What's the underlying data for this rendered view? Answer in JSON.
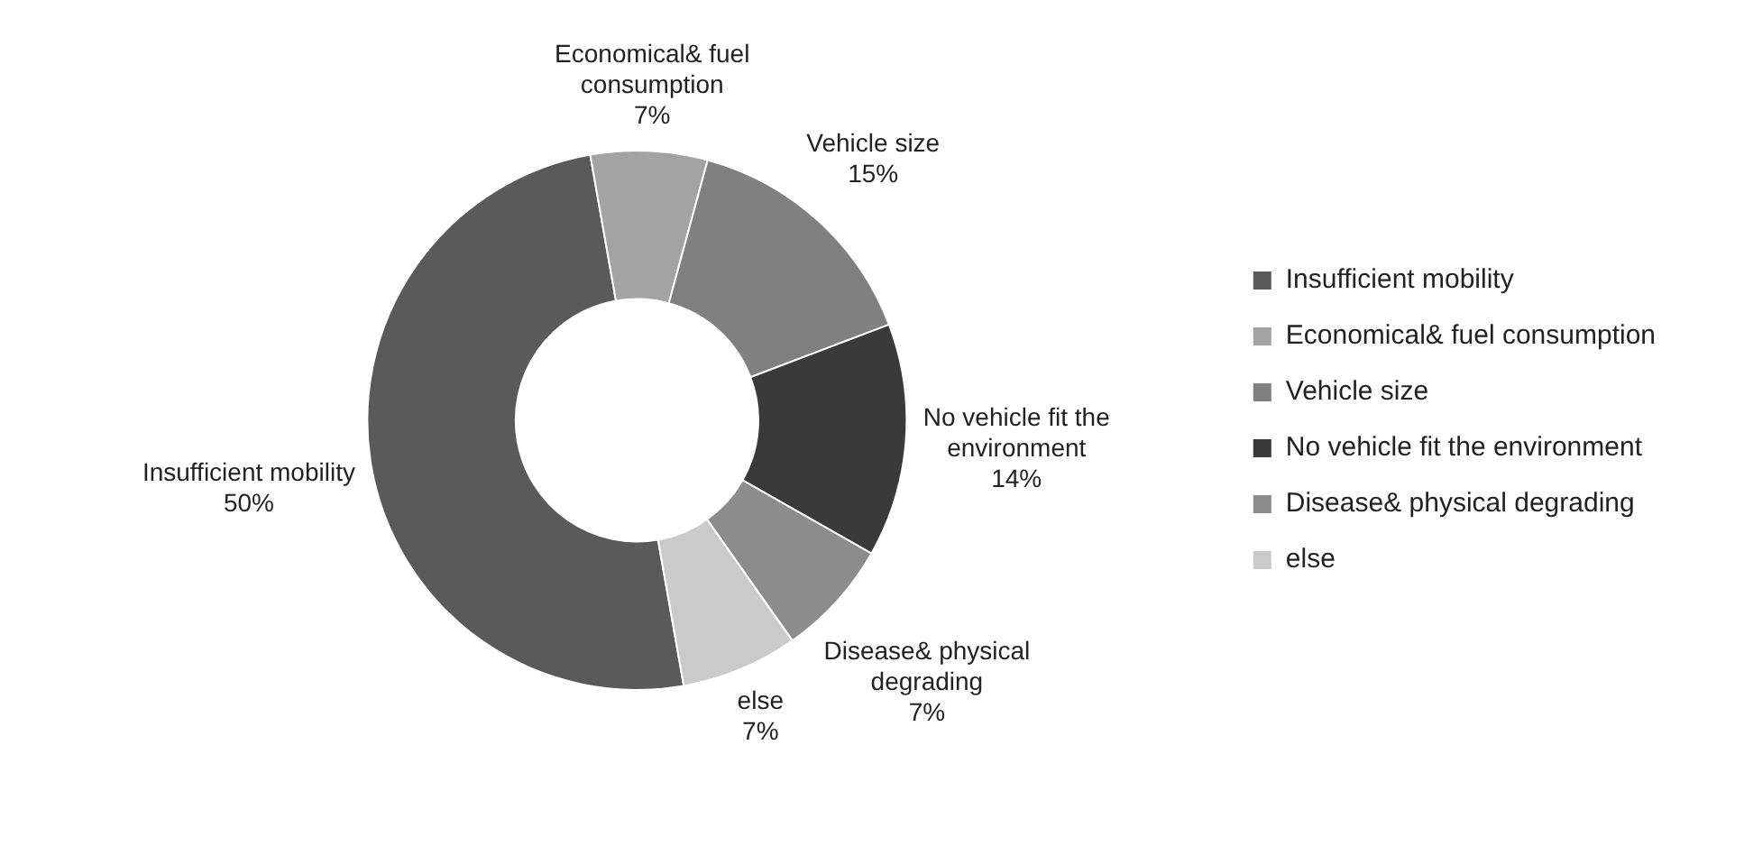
{
  "chart_data": {
    "type": "donut",
    "categories": [
      "Insufficient mobility",
      "Economical& fuel consumption",
      "Vehicle size",
      "No vehicle fit the environment",
      "Disease& physical degrading",
      "else"
    ],
    "values": [
      50,
      7,
      15,
      14,
      7,
      7
    ],
    "value_labels": [
      "50%",
      "7%",
      "15%",
      "14%",
      "7%",
      "7%"
    ],
    "colors": [
      "#5a5a5a",
      "#a3a3a3",
      "#808080",
      "#3a3a3a",
      "#8c8c8c",
      "#cacaca"
    ],
    "legend": "right"
  }
}
